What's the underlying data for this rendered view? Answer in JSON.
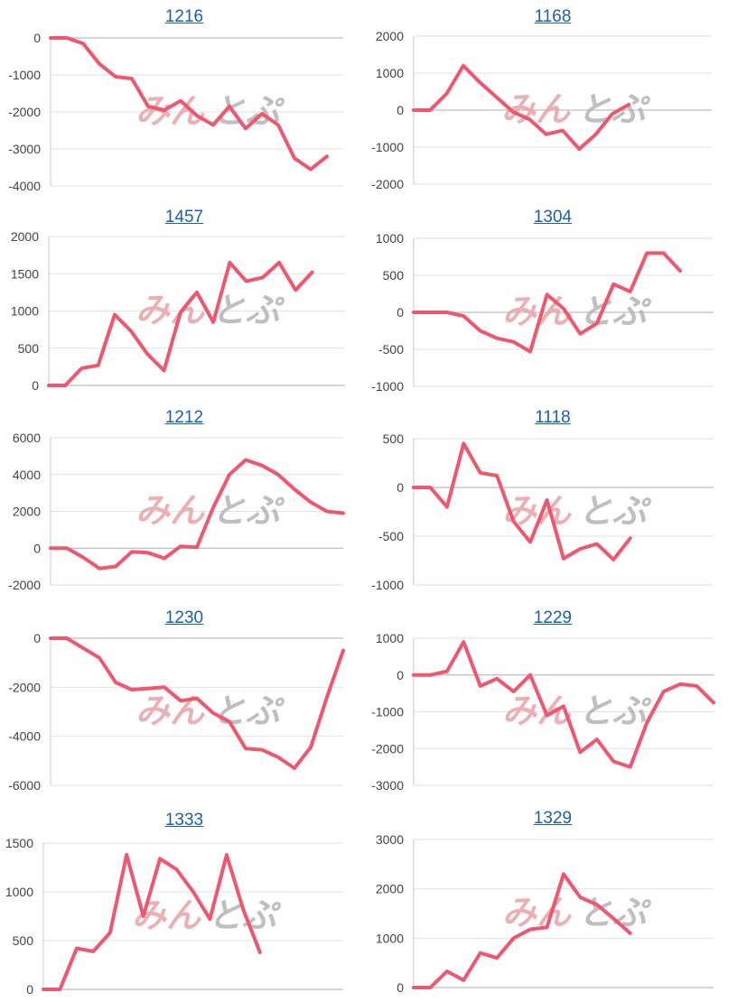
{
  "colors": {
    "line": "#f0566e",
    "link": "#1a5fb4",
    "watermark_pink": "#e9a3a8",
    "watermark_gray": "#b4b4b4"
  },
  "watermark": {
    "part1": "みん",
    "part2": "とぷ"
  },
  "chart_data": [
    {
      "type": "line",
      "title": "1216",
      "ylim": [
        -4000,
        0
      ],
      "yticks": [
        0,
        -1000,
        -2000,
        -3000,
        -4000
      ],
      "x": [
        1,
        2,
        3,
        4,
        5,
        6,
        7,
        8,
        9,
        10,
        11,
        12,
        13,
        14,
        15,
        16,
        17,
        18,
        19
      ],
      "values": [
        0,
        0,
        -150,
        -700,
        -1050,
        -1100,
        -1850,
        -1950,
        -1700,
        -2100,
        -2350,
        -1850,
        -2450,
        -2050,
        -2350,
        -3250,
        -3550,
        -3200,
        null
      ]
    },
    {
      "type": "line",
      "title": "1168",
      "ylim": [
        -2000,
        2000
      ],
      "yticks": [
        2000,
        1000,
        0,
        -1000,
        -2000
      ],
      "x": [
        1,
        2,
        3,
        4,
        5,
        6,
        7,
        8,
        9,
        10,
        11,
        12,
        13,
        14,
        15,
        16,
        17,
        18,
        19
      ],
      "values": [
        0,
        0,
        450,
        1200,
        750,
        350,
        -50,
        -250,
        -650,
        -550,
        -1050,
        -650,
        -100,
        150,
        null,
        null,
        null,
        null,
        null
      ]
    },
    {
      "type": "line",
      "title": "1457",
      "ylim": [
        0,
        2000
      ],
      "yticks": [
        2000,
        1500,
        1000,
        500,
        0
      ],
      "x": [
        1,
        2,
        3,
        4,
        5,
        6,
        7,
        8,
        9,
        10,
        11,
        12,
        13,
        14,
        15,
        16,
        17,
        18,
        19
      ],
      "values": [
        0,
        0,
        230,
        270,
        950,
        730,
        420,
        200,
        980,
        1250,
        850,
        1650,
        1400,
        1450,
        1650,
        1280,
        1520,
        null,
        null
      ]
    },
    {
      "type": "line",
      "title": "1304",
      "ylim": [
        -1000,
        1000
      ],
      "yticks": [
        1000,
        500,
        0,
        -500,
        -1000
      ],
      "x": [
        1,
        2,
        3,
        4,
        5,
        6,
        7,
        8,
        9,
        10,
        11,
        12,
        13,
        14,
        15,
        16,
        17,
        18,
        19
      ],
      "values": [
        0,
        0,
        0,
        -50,
        -250,
        -350,
        -400,
        -530,
        240,
        50,
        -290,
        -150,
        380,
        280,
        800,
        800,
        560,
        null,
        null
      ]
    },
    {
      "type": "line",
      "title": "1212",
      "ylim": [
        -2000,
        6000
      ],
      "yticks": [
        6000,
        4000,
        2000,
        0,
        -2000
      ],
      "x": [
        1,
        2,
        3,
        4,
        5,
        6,
        7,
        8,
        9,
        10,
        11,
        12,
        13,
        14,
        15,
        16,
        17,
        18,
        19
      ],
      "values": [
        0,
        0,
        -500,
        -1100,
        -1000,
        -200,
        -250,
        -550,
        100,
        50,
        2200,
        4000,
        4800,
        4500,
        4000,
        3200,
        2500,
        2000,
        1900
      ]
    },
    {
      "type": "line",
      "title": "1118",
      "ylim": [
        -1000,
        500
      ],
      "yticks": [
        500,
        0,
        -500,
        -1000
      ],
      "x": [
        1,
        2,
        3,
        4,
        5,
        6,
        7,
        8,
        9,
        10,
        11,
        12,
        13,
        14,
        15,
        16,
        17,
        18,
        19
      ],
      "values": [
        0,
        0,
        -200,
        450,
        150,
        120,
        -350,
        -560,
        -130,
        -730,
        -630,
        -580,
        -740,
        -520,
        null,
        null,
        null,
        null,
        null
      ]
    },
    {
      "type": "line",
      "title": "1230",
      "ylim": [
        -6000,
        0
      ],
      "yticks": [
        0,
        -2000,
        -4000,
        -6000
      ],
      "x": [
        1,
        2,
        3,
        4,
        5,
        6,
        7,
        8,
        9,
        10,
        11,
        12,
        13,
        14,
        15,
        16,
        17,
        18,
        19
      ],
      "values": [
        0,
        0,
        -400,
        -800,
        -1800,
        -2100,
        -2050,
        -2000,
        -2550,
        -2450,
        -3050,
        -3400,
        -4500,
        -4550,
        -4850,
        -5300,
        -4450,
        -2400,
        -500
      ]
    },
    {
      "type": "line",
      "title": "1229",
      "ylim": [
        -3000,
        1000
      ],
      "yticks": [
        1000,
        0,
        -1000,
        -2000,
        -3000
      ],
      "x": [
        1,
        2,
        3,
        4,
        5,
        6,
        7,
        8,
        9,
        10,
        11,
        12,
        13,
        14,
        15,
        16,
        17,
        18,
        19
      ],
      "values": [
        0,
        0,
        100,
        900,
        -300,
        -100,
        -450,
        0,
        -1100,
        -850,
        -2100,
        -1750,
        -2350,
        -2500,
        -1300,
        -450,
        -250,
        -300,
        -750
      ]
    },
    {
      "type": "line",
      "title": "1333",
      "ylim": [
        0,
        1500
      ],
      "yticks": [
        1500,
        1000,
        500,
        0
      ],
      "x": [
        1,
        2,
        3,
        4,
        5,
        6,
        7,
        8,
        9,
        10,
        11,
        12,
        13,
        14,
        15,
        16,
        17,
        18,
        19
      ],
      "values": [
        0,
        0,
        420,
        390,
        580,
        1380,
        750,
        1340,
        1230,
        1000,
        720,
        1380,
        820,
        380,
        null,
        null,
        null,
        null,
        null
      ]
    },
    {
      "type": "line",
      "title": "1329",
      "ylim": [
        0,
        3000
      ],
      "yticks": [
        3000,
        2000,
        1000,
        0
      ],
      "x": [
        1,
        2,
        3,
        4,
        5,
        6,
        7,
        8,
        9,
        10,
        11,
        12,
        13,
        14,
        15,
        16,
        17,
        18,
        19
      ],
      "values": [
        0,
        0,
        330,
        150,
        700,
        600,
        1000,
        1180,
        1220,
        2300,
        1830,
        1680,
        1400,
        1100,
        null,
        null,
        null,
        null,
        null
      ]
    }
  ]
}
